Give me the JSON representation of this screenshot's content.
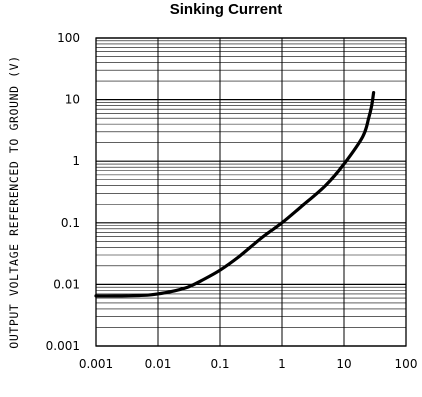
{
  "chart_data": {
    "type": "line",
    "title": "Sinking Current",
    "xlabel": "",
    "ylabel": "OUTPUT VOLTAGE REFERENCED TO GROUND (V)",
    "x_scale": "log",
    "y_scale": "log",
    "xlim": [
      0.001,
      100
    ],
    "ylim": [
      0.001,
      100
    ],
    "x_ticks": [
      "0.001",
      "0.01",
      "0.1",
      "1",
      "10",
      "100"
    ],
    "y_ticks": [
      "0.001",
      "0.01",
      "0.1",
      "1",
      "10",
      "100"
    ],
    "grid": true,
    "series": [
      {
        "x": [
          0.001,
          0.002,
          0.005,
          0.008,
          0.015,
          0.03,
          0.05,
          0.1,
          0.2,
          0.5,
          1,
          2,
          5,
          10,
          20,
          25,
          28,
          30
        ],
        "y": [
          0.0065,
          0.0065,
          0.0066,
          0.0068,
          0.0075,
          0.009,
          0.0115,
          0.017,
          0.028,
          0.06,
          0.1,
          0.18,
          0.4,
          0.9,
          2.5,
          5,
          8,
          13
        ],
        "color": "#000000"
      }
    ]
  }
}
